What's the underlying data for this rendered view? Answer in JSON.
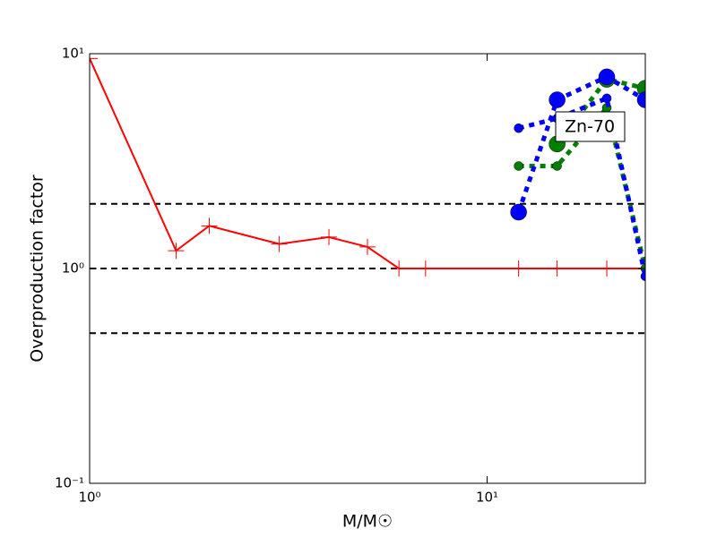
{
  "chart_data": {
    "type": "line",
    "xlabel": "M/M☉",
    "ylabel": "Overproduction factor",
    "annotation": "Zn-70",
    "log_x": true,
    "log_y": true,
    "xlim": [
      1,
      25
    ],
    "ylim": [
      0.1,
      10
    ],
    "xticks": [
      {
        "value": 1,
        "label": "10⁰"
      },
      {
        "value": 10,
        "label": "10¹"
      }
    ],
    "yticks": [
      {
        "value": 0.1,
        "label": "10⁻¹"
      },
      {
        "value": 1,
        "label": "10⁰"
      },
      {
        "value": 10,
        "label": "10¹"
      }
    ],
    "reference_lines": [
      2,
      1,
      0.5
    ],
    "series": [
      {
        "color": "#ff0000",
        "linestyle": "solid",
        "marker": "plus",
        "marker_size": 9,
        "x": [
          1,
          1.65,
          2,
          3,
          4,
          5,
          6,
          7,
          12,
          15,
          20,
          25
        ],
        "values": [
          9.5,
          1.21,
          1.58,
          1.3,
          1.4,
          1.26,
          1.0,
          1.0,
          1.0,
          1.0,
          1.0,
          1.0
        ]
      },
      {
        "color": "#008000",
        "linestyle": "dotted",
        "marker": "circle",
        "marker_size": 5,
        "x": [
          12,
          15,
          20,
          25
        ],
        "values": [
          3.0,
          3.0,
          5.6,
          1.0
        ]
      },
      {
        "color": "#008000",
        "linestyle": "dotted",
        "marker": "circle",
        "marker_size": 9,
        "x": [
          12,
          15,
          20,
          25
        ],
        "values": [
          null,
          3.8,
          7.6,
          6.9
        ]
      },
      {
        "color": "#0000ff",
        "linestyle": "dotted",
        "marker": "circle",
        "marker_size": 5,
        "x": [
          12,
          15,
          20,
          25
        ],
        "values": [
          4.5,
          5.0,
          6.2,
          0.92
        ]
      },
      {
        "color": "#0000ff",
        "linestyle": "dotted",
        "marker": "circle",
        "marker_size": 9,
        "x": [
          12,
          15,
          20,
          25
        ],
        "values": [
          1.83,
          6.1,
          7.8,
          6.1
        ]
      }
    ]
  }
}
